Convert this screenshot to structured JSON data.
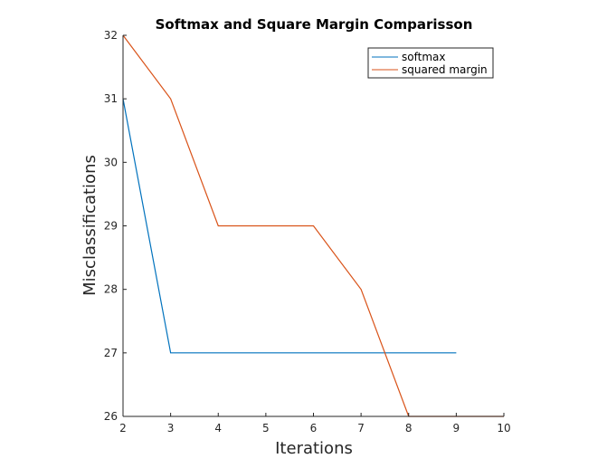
{
  "chart_data": {
    "type": "line",
    "title": "Softmax and Square Margin Comparisson",
    "xlabel": "Iterations",
    "ylabel": "Misclassifications",
    "xlim": [
      2,
      10
    ],
    "ylim": [
      26,
      32
    ],
    "xticks": [
      "2",
      "3",
      "4",
      "5",
      "6",
      "7",
      "8",
      "9",
      "10"
    ],
    "yticks": [
      "26",
      "27",
      "28",
      "29",
      "30",
      "31",
      "32"
    ],
    "grid": false,
    "legend_position": "top-right",
    "series": [
      {
        "name": "softmax",
        "color": "#0072BD",
        "x": [
          2,
          3,
          4,
          5,
          6,
          7,
          8,
          9
        ],
        "y": [
          31,
          27,
          27,
          27,
          27,
          27,
          27,
          27
        ]
      },
      {
        "name": "squared margin",
        "color": "#D95319",
        "x": [
          2,
          3,
          4,
          5,
          6,
          7,
          8,
          9,
          10
        ],
        "y": [
          32,
          31,
          29,
          29,
          29,
          28,
          26,
          26,
          26
        ]
      }
    ]
  }
}
